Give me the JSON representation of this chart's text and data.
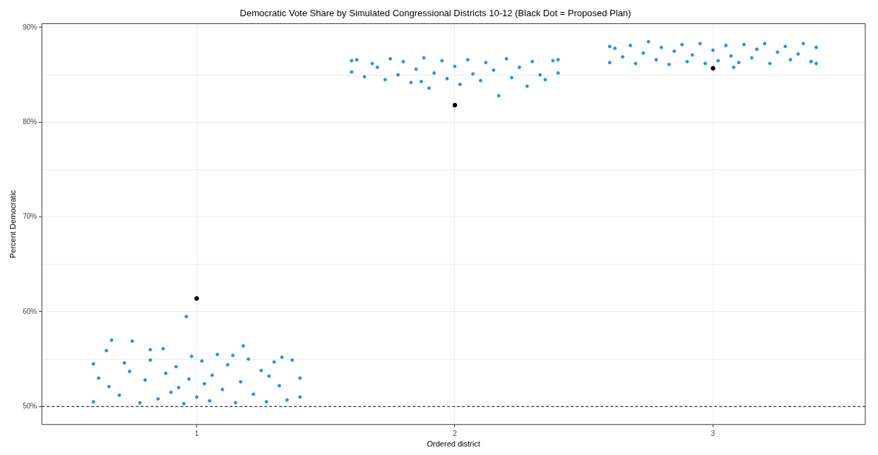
{
  "chart_data": {
    "type": "scatter",
    "title": "Democratic Vote Share by Simulated Congressional Districts 10-12 (Black Dot = Proposed Plan)",
    "xlabel": "Ordered district",
    "ylabel": "Percent Democratic",
    "xlim": [
      0.4,
      3.59
    ],
    "xticks": [
      1,
      2,
      3
    ],
    "ylim": [
      48.1,
      90.4
    ],
    "yticks": [
      {
        "value": 50,
        "label": "50%"
      },
      {
        "value": 55,
        "label": null
      },
      {
        "value": 60,
        "label": "60%"
      },
      {
        "value": 65,
        "label": null
      },
      {
        "value": 70,
        "label": "70%"
      },
      {
        "value": 75,
        "label": null
      },
      {
        "value": 80,
        "label": "80%"
      },
      {
        "value": 85,
        "label": null
      },
      {
        "value": 90,
        "label": "90%"
      }
    ],
    "grid": true,
    "legend": false,
    "marker": "circle",
    "ref_lines": [
      {
        "axis": "y",
        "value": 50,
        "color": "#000000",
        "line_style": "dashed"
      }
    ],
    "series": [
      {
        "color": "#1e90ff",
        "x": [
          0.6,
          0.62,
          0.65,
          0.67,
          0.7,
          0.72,
          0.75,
          0.78,
          0.8,
          0.82,
          0.85,
          0.87,
          0.88,
          0.9,
          0.92,
          0.95,
          0.97,
          0.98,
          1.0,
          1.02,
          1.05,
          1.06,
          1.08,
          1.1,
          1.12,
          1.15,
          1.17,
          1.18,
          1.2,
          1.22,
          1.25,
          1.27,
          1.3,
          1.32,
          1.35,
          1.37,
          1.4,
          1.4,
          0.6,
          0.96,
          0.82,
          1.14,
          0.66,
          0.74,
          1.28,
          1.33,
          0.93,
          1.03,
          1.6,
          1.62,
          1.65,
          1.68,
          1.7,
          1.73,
          1.75,
          1.78,
          1.8,
          1.83,
          1.85,
          1.88,
          1.9,
          1.92,
          1.95,
          1.97,
          2.0,
          2.02,
          2.05,
          2.07,
          2.1,
          2.12,
          2.15,
          2.17,
          2.2,
          2.22,
          2.25,
          2.28,
          2.3,
          2.33,
          2.35,
          2.38,
          2.4,
          2.4,
          1.6,
          1.87,
          2.6,
          2.62,
          2.65,
          2.68,
          2.7,
          2.73,
          2.75,
          2.78,
          2.8,
          2.83,
          2.85,
          2.88,
          2.9,
          2.92,
          2.95,
          2.97,
          3.0,
          3.02,
          3.05,
          3.07,
          3.1,
          3.12,
          3.15,
          3.17,
          3.2,
          3.22,
          3.25,
          3.28,
          3.3,
          3.33,
          3.35,
          3.38,
          3.4,
          3.4,
          2.6,
          3.08
        ],
        "values": [
          50.5,
          53.0,
          55.9,
          57.0,
          51.2,
          54.6,
          56.9,
          50.4,
          52.8,
          54.9,
          50.8,
          56.1,
          53.5,
          51.5,
          54.2,
          50.3,
          52.9,
          55.3,
          51.0,
          54.8,
          50.6,
          53.3,
          55.5,
          51.8,
          54.4,
          50.4,
          52.6,
          56.4,
          55.0,
          51.3,
          53.8,
          50.5,
          54.7,
          52.2,
          50.7,
          54.9,
          53.0,
          51.0,
          54.5,
          59.5,
          56.0,
          55.4,
          52.1,
          53.7,
          53.2,
          55.2,
          52.0,
          52.4,
          85.3,
          86.6,
          84.8,
          86.2,
          85.8,
          84.5,
          86.7,
          85.0,
          86.4,
          84.2,
          85.6,
          86.8,
          83.6,
          85.2,
          86.5,
          84.6,
          85.9,
          84.0,
          86.6,
          85.1,
          84.4,
          86.3,
          85.5,
          82.8,
          86.7,
          84.7,
          85.8,
          83.8,
          86.4,
          85.0,
          84.5,
          86.5,
          85.2,
          86.6,
          86.5,
          84.3,
          86.3,
          87.8,
          86.9,
          88.1,
          86.2,
          87.3,
          88.5,
          86.6,
          87.9,
          86.1,
          87.5,
          88.2,
          86.4,
          87.1,
          88.3,
          86.2,
          87.6,
          86.5,
          88.1,
          87.0,
          86.3,
          88.2,
          86.8,
          87.7,
          88.3,
          86.2,
          87.4,
          88.0,
          86.6,
          87.2,
          88.3,
          86.4,
          87.9,
          86.2,
          88.0,
          85.8
        ]
      },
      {
        "color": "#000000",
        "x": [
          1,
          2,
          3
        ],
        "values": [
          61.4,
          81.8,
          85.7
        ]
      }
    ]
  }
}
